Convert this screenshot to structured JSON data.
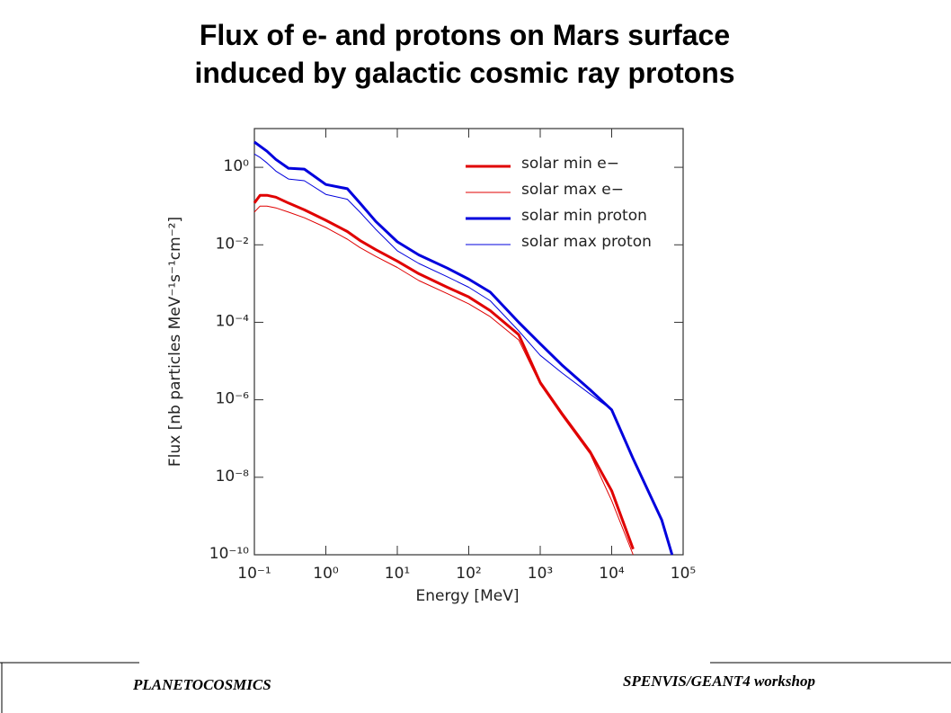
{
  "header": {
    "title": [
      "Flux of e- and protons on Mars surface",
      "induced by galactic cosmic ray protons"
    ]
  },
  "chart_data": {
    "type": "line",
    "xlabel": "Energy [MeV]",
    "ylabel": "Flux [nb particles MeV⁻¹s⁻¹cm⁻²]",
    "xscale": "log",
    "yscale": "log",
    "x": [
      0.1,
      0.12,
      0.15,
      0.2,
      0.3,
      0.5,
      1,
      2,
      3,
      5,
      10,
      20,
      50,
      100,
      200,
      500,
      1000,
      2000,
      5000,
      10000,
      20000,
      50000,
      70000
    ],
    "series": [
      {
        "name": "solar min e−",
        "color": "#e00000",
        "width": 3,
        "values": [
          0.12,
          0.19,
          0.19,
          0.17,
          0.12,
          0.08,
          0.043,
          0.022,
          0.013,
          0.0075,
          0.0038,
          0.0018,
          0.0008,
          0.00045,
          0.0002,
          4.8e-05,
          2.8e-06,
          4.5e-07,
          4.5e-08,
          4.5e-09,
          1.4e-10,
          null,
          null
        ]
      },
      {
        "name": "solar max e−",
        "color": "#e00000",
        "width": 1,
        "values": [
          0.07,
          0.1,
          0.1,
          0.09,
          0.07,
          0.05,
          0.028,
          0.014,
          0.0085,
          0.005,
          0.0026,
          0.0012,
          0.00055,
          0.0003,
          0.00014,
          3.5e-05,
          2.5e-06,
          4e-07,
          4e-08,
          2.5e-09,
          1e-10,
          null,
          null
        ]
      },
      {
        "name": "solar min proton",
        "color": "#0000dd",
        "width": 3,
        "values": [
          4.5,
          3.5,
          2.6,
          1.6,
          0.95,
          0.9,
          0.36,
          0.28,
          0.12,
          0.04,
          0.012,
          0.0055,
          0.0025,
          0.0013,
          0.0006,
          0.0001,
          2.8e-05,
          8e-06,
          1.8e-06,
          5.5e-07,
          3e-08,
          8e-10,
          1e-10
        ]
      },
      {
        "name": "solar max proton",
        "color": "#0000dd",
        "width": 1,
        "values": [
          2.2,
          1.8,
          1.3,
          0.8,
          0.5,
          0.45,
          0.2,
          0.15,
          0.07,
          0.025,
          0.007,
          0.0033,
          0.0015,
          0.0008,
          0.00036,
          6e-05,
          1.4e-05,
          5e-06,
          1.4e-06,
          5.5e-07,
          3e-08,
          8e-10,
          1e-10
        ]
      }
    ],
    "xlim": [
      0.1,
      100000
    ],
    "ylim": [
      1e-10,
      10
    ],
    "xticks": [
      {
        "value": 0.1,
        "label": "10⁻¹"
      },
      {
        "value": 1,
        "label": "10⁰"
      },
      {
        "value": 10,
        "label": "10¹"
      },
      {
        "value": 100,
        "label": "10²"
      },
      {
        "value": 1000,
        "label": "10³"
      },
      {
        "value": 10000,
        "label": "10⁴"
      },
      {
        "value": 100000,
        "label": "10⁵"
      }
    ],
    "yticks": [
      {
        "value": 1e-10,
        "label": "10⁻¹⁰"
      },
      {
        "value": 1e-08,
        "label": "10⁻⁸"
      },
      {
        "value": 1e-06,
        "label": "10⁻⁶"
      },
      {
        "value": 0.0001,
        "label": "10⁻⁴"
      },
      {
        "value": 0.01,
        "label": "10⁻²"
      },
      {
        "value": 1,
        "label": "10⁰"
      }
    ],
    "legend": "upper right"
  },
  "footer": {
    "left": "PLANETOCOSMICS",
    "right": "SPENVIS/GEANT4 workshop"
  }
}
